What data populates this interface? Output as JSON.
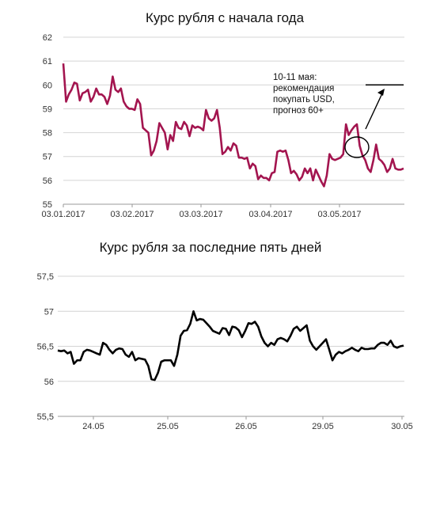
{
  "chart_data": [
    {
      "type": "line",
      "title": "Курс рубля с начала года",
      "xlabel": "",
      "ylabel": "",
      "ylim": [
        55,
        62
      ],
      "yticks": [
        "55",
        "56",
        "57",
        "58",
        "59",
        "60",
        "61",
        "62"
      ],
      "xtick_labels": [
        "03.01.2017",
        "03.02.2017",
        "03.03.2017",
        "03.04.2017",
        "03.05.2017"
      ],
      "grid": true,
      "colors": {
        "line": "#a3154f"
      },
      "series": [
        {
          "values": [
            60.9,
            59.3,
            59.6,
            59.8,
            60.1,
            60.05,
            59.35,
            59.65,
            59.7,
            59.8,
            59.3,
            59.5,
            59.85,
            59.6,
            59.6,
            59.5,
            59.2,
            59.55,
            60.35,
            59.8,
            59.7,
            59.85,
            59.3,
            59.1,
            59.0,
            59.0,
            58.95,
            59.4,
            59.2,
            58.2,
            58.1,
            58.0,
            57.05,
            57.25,
            57.65,
            58.4,
            58.2,
            58.0,
            57.3,
            57.9,
            57.65,
            58.45,
            58.2,
            58.15,
            58.45,
            58.3,
            57.85,
            58.3,
            58.2,
            58.25,
            58.2,
            58.1,
            58.95,
            58.6,
            58.5,
            58.6,
            58.95,
            58.2,
            57.1,
            57.2,
            57.4,
            57.25,
            57.55,
            57.45,
            56.95,
            56.95,
            56.9,
            56.95,
            56.5,
            56.7,
            56.6,
            56.05,
            56.2,
            56.1,
            56.1,
            56.0,
            56.3,
            56.35,
            57.2,
            57.25,
            57.2,
            57.25,
            56.85,
            56.3,
            56.4,
            56.25,
            56.0,
            56.15,
            56.5,
            56.3,
            56.5,
            56.0,
            56.45,
            56.2,
            55.95,
            55.75,
            56.2,
            57.1,
            56.9,
            56.85,
            56.9,
            56.95,
            57.1,
            58.35,
            57.9,
            58.1,
            58.25,
            58.35,
            57.45,
            57.05,
            56.85,
            56.5,
            56.35,
            56.85,
            57.5,
            56.9,
            56.8,
            56.65,
            56.35,
            56.5,
            56.9,
            56.5,
            56.45,
            56.45,
            56.5
          ]
        }
      ],
      "annotation": {
        "lines": [
          "10-11 мая:",
          "рекомендация",
          "покупать USD,",
          "прогноз 60+"
        ],
        "target_level": 60
      }
    },
    {
      "type": "line",
      "title": "Курс рубля за последние пять дней",
      "xlabel": "",
      "ylabel": "",
      "ylim": [
        55.5,
        57.5
      ],
      "yticks": [
        "55,5",
        "56",
        "56,5",
        "57",
        "57,5"
      ],
      "xtick_labels": [
        "24.05",
        "25.05",
        "26.05",
        "29.05",
        "30.05"
      ],
      "grid": true,
      "colors": {
        "line": "#000000"
      },
      "series": [
        {
          "values": [
            56.44,
            56.43,
            56.44,
            56.4,
            56.42,
            56.25,
            56.3,
            56.3,
            56.42,
            56.45,
            56.44,
            56.42,
            56.4,
            56.38,
            56.55,
            56.52,
            56.45,
            56.4,
            56.45,
            56.47,
            56.46,
            56.38,
            56.35,
            56.42,
            56.3,
            56.33,
            56.32,
            56.31,
            56.22,
            56.03,
            56.02,
            56.12,
            56.28,
            56.3,
            56.3,
            56.3,
            56.22,
            56.38,
            56.65,
            56.72,
            56.73,
            56.82,
            57.0,
            56.87,
            56.89,
            56.88,
            56.83,
            56.78,
            56.72,
            56.7,
            56.68,
            56.76,
            56.75,
            56.66,
            56.78,
            56.77,
            56.73,
            56.63,
            56.72,
            56.83,
            56.82,
            56.85,
            56.78,
            56.64,
            56.55,
            56.5,
            56.55,
            56.52,
            56.6,
            56.62,
            56.6,
            56.57,
            56.65,
            56.75,
            56.78,
            56.72,
            56.76,
            56.8,
            56.58,
            56.5,
            56.45,
            56.5,
            56.55,
            56.6,
            56.45,
            56.3,
            56.38,
            56.42,
            56.4,
            56.43,
            56.45,
            56.48,
            56.45,
            56.43,
            56.48,
            56.46,
            56.46,
            56.47,
            56.47,
            56.52,
            56.55,
            56.55,
            56.52,
            56.58,
            56.5,
            56.48,
            56.5,
            56.51
          ]
        }
      ]
    }
  ]
}
